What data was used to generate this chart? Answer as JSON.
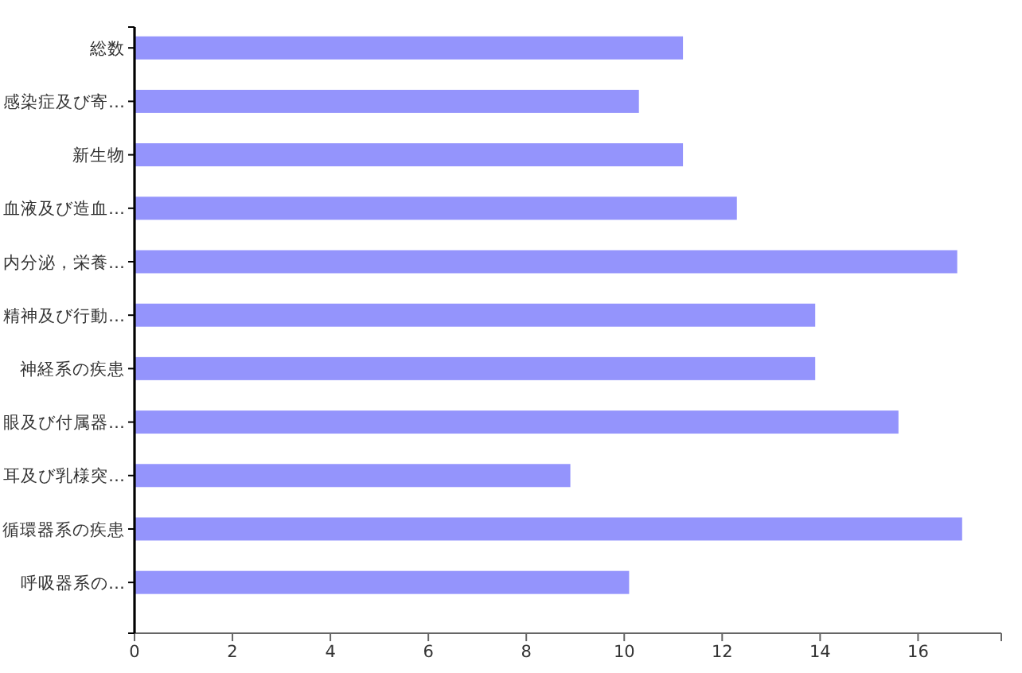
{
  "chart_data": {
    "type": "bar",
    "orientation": "horizontal",
    "categories": [
      "総数",
      "感染症及び寄…",
      "新生物",
      "血液及び造血…",
      "内分泌，栄養…",
      "精神及び行動…",
      "神経系の疾患",
      "眼及び付属器…",
      "耳及び乳様突…",
      "循環器系の疾患",
      "呼吸器系の…"
    ],
    "values": [
      11.2,
      10.3,
      11.2,
      12.3,
      16.8,
      13.9,
      13.9,
      15.6,
      8.9,
      16.9,
      10.1
    ],
    "color": "#9494fc",
    "xlim": [
      0,
      17.7
    ],
    "xticks": [
      0,
      2,
      4,
      6,
      8,
      10,
      12,
      14,
      16,
      {
        "value": 17.7,
        "label": null
      }
    ]
  }
}
